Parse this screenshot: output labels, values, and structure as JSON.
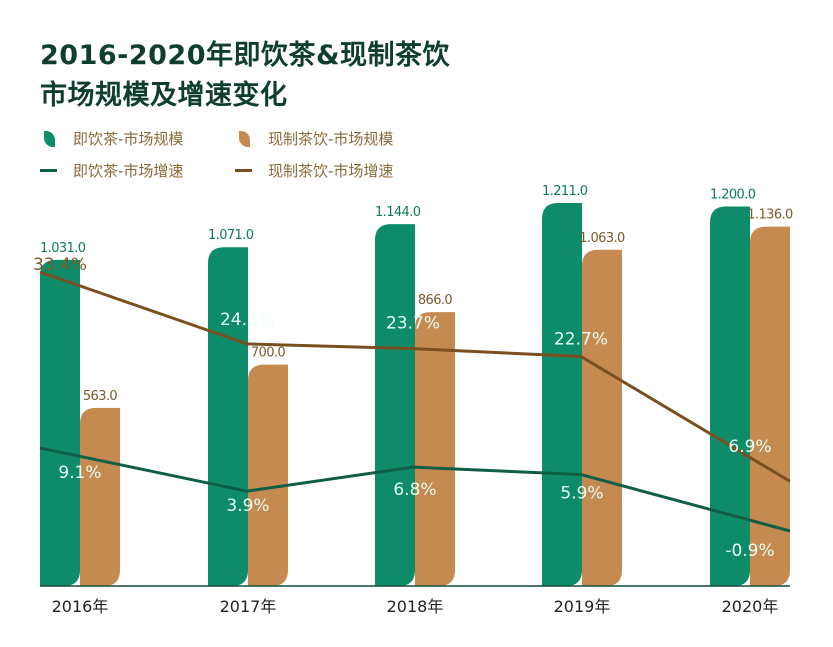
{
  "title": {
    "line1": "2016-2020年即饮茶&现制茶饮",
    "line2": "市场规模及增速变化"
  },
  "legend": [
    {
      "label": "即饮茶-市场规模",
      "kind": "bar",
      "color": "#0e8c6a"
    },
    {
      "label": "现制茶饮-市场规模",
      "kind": "bar",
      "color": "#c58a4f"
    },
    {
      "label": "即饮茶-市场增速",
      "kind": "line",
      "color": "#0f5e45"
    },
    {
      "label": "现制茶饮-市场增速",
      "kind": "line",
      "color": "#7a5020"
    }
  ],
  "colors": {
    "rtd_bar": "#0e8c6a",
    "fresh_bar": "#c58a4f",
    "rtd_line": "#0f5e45",
    "fresh_line": "#7a5020",
    "rtd_value_text": "#0e7a5c",
    "fresh_value_text": "#7a5a2a",
    "axis": "#0f4d3a",
    "pct_on_bar": "#e8fff6",
    "pct_off_bar_fresh": "#7a5a2a"
  },
  "chart_data": {
    "type": "bar",
    "title": "2016-2020年即饮茶&现制茶饮市场规模及增速变化",
    "categories": [
      "2016年",
      "2017年",
      "2018年",
      "2019年",
      "2020年"
    ],
    "series": [
      {
        "name": "即饮茶-市场规模",
        "kind": "bar",
        "values": [
          1031.0,
          1071.0,
          1144.0,
          1211.0,
          1200.0
        ],
        "labels": [
          "1.031.0",
          "1.071.0",
          "1.144.0",
          "1.211.0",
          "1.200.0"
        ]
      },
      {
        "name": "现制茶饮-市场规模",
        "kind": "bar",
        "values": [
          563.0,
          700.0,
          866.0,
          1063.0,
          1136.0
        ],
        "labels": [
          "563.0",
          "700.0",
          "866.0",
          "1.063.0",
          "1.136.0"
        ]
      },
      {
        "name": "即饮茶-市场增速",
        "kind": "line",
        "unit": "%",
        "values": [
          9.1,
          3.9,
          6.8,
          5.9,
          -0.9
        ],
        "labels": [
          "9.1%",
          "3.9%",
          "6.8%",
          "5.9%",
          "-0.9%"
        ]
      },
      {
        "name": "现制茶饮-市场增速",
        "kind": "line",
        "unit": "%",
        "values": [
          33.4,
          24.3,
          23.7,
          22.7,
          6.9
        ],
        "labels": [
          "33.4%",
          "24.3%",
          "23.7%",
          "22.7%",
          "6.9%"
        ]
      }
    ],
    "xlabel": "",
    "ylabel": "",
    "ylim": [
      0,
      1250
    ],
    "grid": false,
    "legend_position": "top-left"
  }
}
